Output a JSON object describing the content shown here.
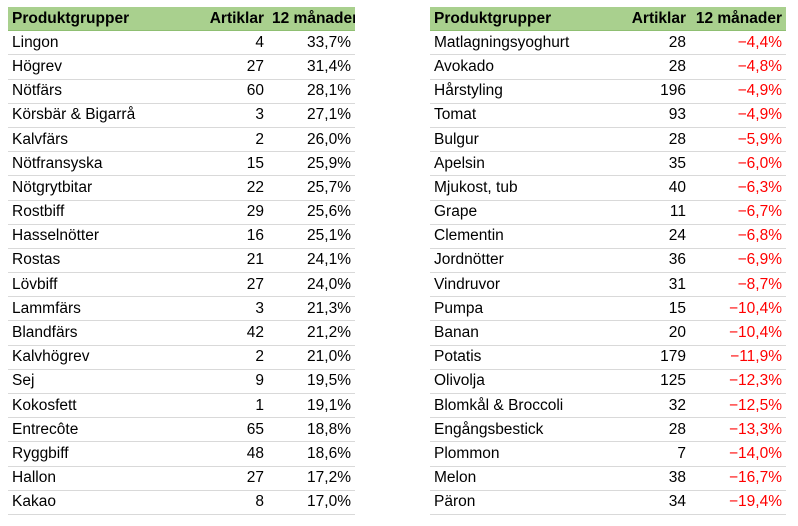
{
  "left": {
    "headers": [
      "Produktgrupper",
      "Artiklar",
      "12 månader"
    ],
    "rows": [
      [
        "Lingon",
        "4",
        "33,7%"
      ],
      [
        "Högrev",
        "27",
        "31,4%"
      ],
      [
        "Nötfärs",
        "60",
        "28,1%"
      ],
      [
        "Körsbär & Bigarrå",
        "3",
        "27,1%"
      ],
      [
        "Kalvfärs",
        "2",
        "26,0%"
      ],
      [
        "Nötfransyska",
        "15",
        "25,9%"
      ],
      [
        "Nötgrytbitar",
        "22",
        "25,7%"
      ],
      [
        "Rostbiff",
        "29",
        "25,6%"
      ],
      [
        "Hasselnötter",
        "16",
        "25,1%"
      ],
      [
        "Rostas",
        "21",
        "24,1%"
      ],
      [
        "Lövbiff",
        "27",
        "24,0%"
      ],
      [
        "Lammfärs",
        "3",
        "21,3%"
      ],
      [
        "Blandfärs",
        "42",
        "21,2%"
      ],
      [
        "Kalvhögrev",
        "2",
        "21,0%"
      ],
      [
        "Sej",
        "9",
        "19,5%"
      ],
      [
        "Kokosfett",
        "1",
        "19,1%"
      ],
      [
        "Entrecôte",
        "65",
        "18,8%"
      ],
      [
        "Ryggbiff",
        "48",
        "18,6%"
      ],
      [
        "Hallon",
        "27",
        "17,2%"
      ],
      [
        "Kakao",
        "8",
        "17,0%"
      ]
    ]
  },
  "right": {
    "headers": [
      "Produktgrupper",
      "Artiklar",
      "12 månader"
    ],
    "rows": [
      [
        "Matlagningsyoghurt",
        "28",
        "−4,4%"
      ],
      [
        "Avokado",
        "28",
        "−4,8%"
      ],
      [
        "Hårstyling",
        "196",
        "−4,9%"
      ],
      [
        "Tomat",
        "93",
        "−4,9%"
      ],
      [
        "Bulgur",
        "28",
        "−5,9%"
      ],
      [
        "Apelsin",
        "35",
        "−6,0%"
      ],
      [
        "Mjukost, tub",
        "40",
        "−6,3%"
      ],
      [
        "Grape",
        "11",
        "−6,7%"
      ],
      [
        "Clementin",
        "24",
        "−6,8%"
      ],
      [
        "Jordnötter",
        "36",
        "−6,9%"
      ],
      [
        "Vindruvor",
        "31",
        "−8,7%"
      ],
      [
        "Pumpa",
        "15",
        "−10,4%"
      ],
      [
        "Banan",
        "20",
        "−10,4%"
      ],
      [
        "Potatis",
        "179",
        "−11,9%"
      ],
      [
        "Olivolja",
        "125",
        "−12,3%"
      ],
      [
        "Blomkål & Broccoli",
        "32",
        "−12,5%"
      ],
      [
        "Engångsbestick",
        "28",
        "−13,3%"
      ],
      [
        "Plommon",
        "7",
        "−14,0%"
      ],
      [
        "Melon",
        "38",
        "−16,7%"
      ],
      [
        "Päron",
        "34",
        "−19,4%"
      ]
    ]
  },
  "colors": {
    "header_bg": "#a9d08e",
    "negative_text": "#ff0000"
  }
}
